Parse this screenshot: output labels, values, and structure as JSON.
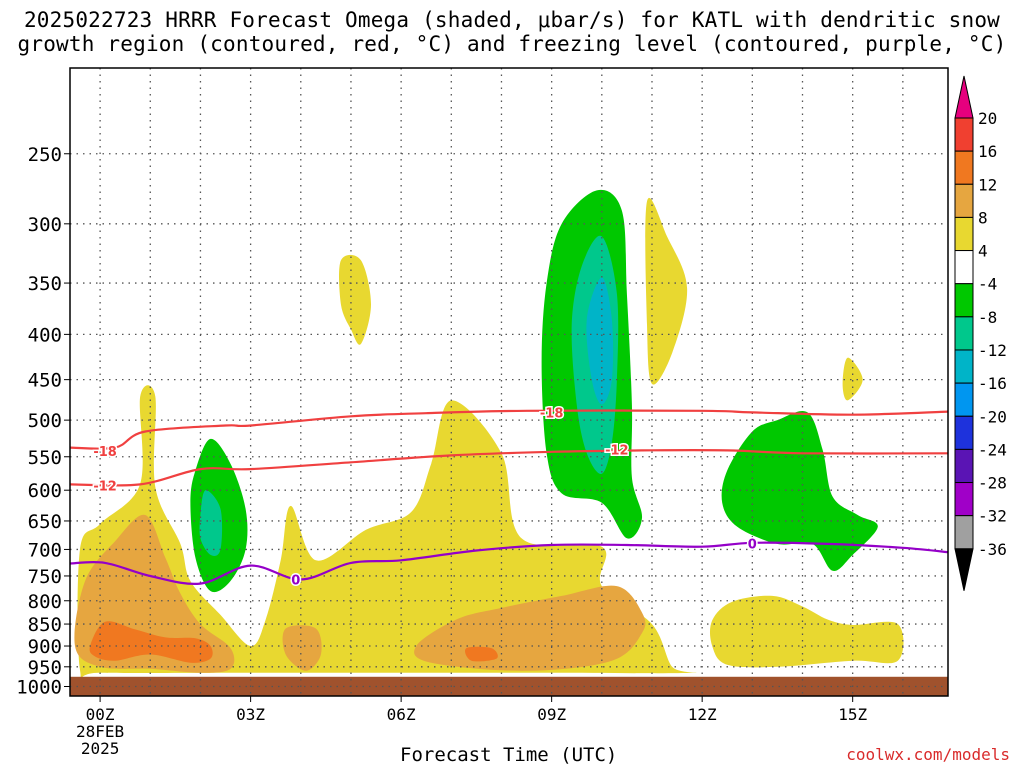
{
  "title_line1": "2025022723 HRRR Forecast Omega (shaded, μbar/s) for KATL with dendritic snow",
  "title_line2": "growth region (contoured, red, °C) and freezing level (contoured, purple, °C)",
  "credit": "coolwx.com/models",
  "chart_data": {
    "type": "contour",
    "title": "2025022723 HRRR Forecast Omega (shaded, μbar/s) for KATL with dendritic snow growth region (contoured, red, °C) and freezing level (contoured, purple, °C)",
    "xlabel": "Forecast Time (UTC)",
    "ylabel": "",
    "y_scale": "log-pressure",
    "y_reversed": true,
    "xlim_hours": [
      -0.6,
      16.9
    ],
    "ylim_hpa": [
      1025,
      200
    ],
    "y_ticks": [
      250,
      300,
      350,
      400,
      450,
      500,
      550,
      600,
      650,
      700,
      750,
      800,
      850,
      900,
      950,
      1000
    ],
    "x_ticks": [
      {
        "hour": 0,
        "lines": [
          "00Z",
          "28FEB",
          "2025"
        ]
      },
      {
        "hour": 3,
        "lines": [
          "03Z"
        ]
      },
      {
        "hour": 6,
        "lines": [
          "06Z"
        ]
      },
      {
        "hour": 9,
        "lines": [
          "09Z"
        ]
      },
      {
        "hour": 12,
        "lines": [
          "12Z"
        ]
      },
      {
        "hour": 15,
        "lines": [
          "15Z"
        ]
      }
    ],
    "grid": true,
    "below_ground": {
      "from_hpa": 975,
      "color": "#a0522d"
    },
    "colorbar": {
      "placement": "right",
      "labels": [
        "20",
        "16",
        "12",
        "8",
        "4",
        "-4",
        "-8",
        "-12",
        "-16",
        "-20",
        "-24",
        "-28",
        "-32",
        "-36"
      ],
      "bands": [
        {
          "range": "> 20",
          "color": "#e6007e"
        },
        {
          "range": "16 to 20",
          "color": "#f04030"
        },
        {
          "range": "12 to 16",
          "color": "#f07820"
        },
        {
          "range": "8 to 12",
          "color": "#e6a640"
        },
        {
          "range": "4 to 8",
          "color": "#e8d830"
        },
        {
          "range": "-4 to 4",
          "color": "#ffffff"
        },
        {
          "range": "-8 to -4",
          "color": "#00c800"
        },
        {
          "range": "-12 to -8",
          "color": "#00c88c"
        },
        {
          "range": "-16 to -12",
          "color": "#00b4c8"
        },
        {
          "range": "-20 to -16",
          "color": "#0096f0"
        },
        {
          "range": "-24 to -20",
          "color": "#1e32dc"
        },
        {
          "range": "-28 to -24",
          "color": "#5a14b4"
        },
        {
          "range": "-32 to -28",
          "color": "#a000c8"
        },
        {
          "range": "-36 to -32",
          "color": "#a0a0a0"
        },
        {
          "range": "< -36",
          "color": "#000000"
        }
      ]
    },
    "contours": [
      {
        "name": "-18",
        "color": "#f04040",
        "points": [
          [
            -0.6,
            537
          ],
          [
            0.3,
            537
          ],
          [
            0.9,
            515
          ],
          [
            2.5,
            507
          ],
          [
            3.0,
            507
          ],
          [
            5.0,
            495
          ],
          [
            6.5,
            491
          ],
          [
            8.5,
            488
          ],
          [
            12.0,
            488
          ],
          [
            13.0,
            490
          ],
          [
            15.0,
            493
          ],
          [
            16.9,
            489
          ]
        ],
        "labels": [
          {
            "hour": 0.1,
            "hpa": 542
          },
          {
            "hour": 9.0,
            "hpa": 490
          }
        ]
      },
      {
        "name": "-12",
        "color": "#f04040",
        "points": [
          [
            -0.6,
            591
          ],
          [
            0.8,
            591
          ],
          [
            2.0,
            568
          ],
          [
            3.0,
            568
          ],
          [
            5.0,
            558
          ],
          [
            7.0,
            548
          ],
          [
            9.0,
            543
          ],
          [
            10.8,
            541
          ],
          [
            12.5,
            541
          ],
          [
            14.0,
            545
          ],
          [
            16.9,
            545
          ]
        ],
        "labels": [
          {
            "hour": 0.1,
            "hpa": 593
          },
          {
            "hour": 10.3,
            "hpa": 540
          }
        ]
      },
      {
        "name": "0",
        "color": "#9400c8",
        "points": [
          [
            -0.6,
            726
          ],
          [
            0.1,
            725
          ],
          [
            1.0,
            750
          ],
          [
            2.0,
            765
          ],
          [
            3.0,
            730
          ],
          [
            4.0,
            757
          ],
          [
            5.0,
            725
          ],
          [
            6.0,
            720
          ],
          [
            7.5,
            702
          ],
          [
            9.0,
            692
          ],
          [
            10.5,
            692
          ],
          [
            12.0,
            695
          ],
          [
            13.0,
            688
          ],
          [
            14.5,
            690
          ],
          [
            16.0,
            697
          ],
          [
            16.9,
            705
          ]
        ],
        "labels": [
          {
            "hour": 3.9,
            "hpa": 757
          },
          {
            "hour": 13.0,
            "hpa": 689
          }
        ]
      }
    ],
    "regions": [
      {
        "value": "4 to 8",
        "points": [
          [
            -0.4,
            958
          ],
          [
            -0.4,
            700
          ],
          [
            0.0,
            655
          ],
          [
            0.8,
            590
          ],
          [
            0.8,
            470
          ],
          [
            1.1,
            470
          ],
          [
            1.1,
            595
          ],
          [
            1.6,
            690
          ],
          [
            1.8,
            760
          ],
          [
            2.4,
            830
          ],
          [
            3.0,
            900
          ],
          [
            3.3,
            840
          ],
          [
            3.6,
            720
          ],
          [
            3.8,
            625
          ],
          [
            4.3,
            720
          ],
          [
            5.3,
            665
          ],
          [
            6.2,
            635
          ],
          [
            6.6,
            560
          ],
          [
            7.0,
            475
          ],
          [
            8.0,
            545
          ],
          [
            8.4,
            680
          ],
          [
            10.0,
            695
          ],
          [
            10.0,
            770
          ],
          [
            11.0,
            850
          ],
          [
            11.4,
            950
          ],
          [
            11.8,
            965
          ],
          [
            9.0,
            965
          ],
          [
            6.0,
            965
          ],
          [
            3.0,
            965
          ],
          [
            0.0,
            965
          ]
        ]
      },
      {
        "value": "4 to 8",
        "points": [
          [
            4.8,
            330
          ],
          [
            5.2,
            330
          ],
          [
            5.4,
            370
          ],
          [
            5.2,
            410
          ],
          [
            5.0,
            395
          ],
          [
            4.8,
            370
          ]
        ]
      },
      {
        "value": "4 to 8",
        "points": [
          [
            10.9,
            283
          ],
          [
            11.3,
            310
          ],
          [
            11.7,
            355
          ],
          [
            11.4,
            420
          ],
          [
            11.0,
            455
          ],
          [
            10.9,
            390
          ]
        ]
      },
      {
        "value": "4 to 8",
        "points": [
          [
            14.9,
            425
          ],
          [
            15.2,
            450
          ],
          [
            14.9,
            475
          ],
          [
            14.8,
            455
          ]
        ]
      },
      {
        "value": "4 to 8",
        "points": [
          [
            12.2,
            842
          ],
          [
            12.6,
            802
          ],
          [
            13.4,
            790
          ],
          [
            14.0,
            812
          ],
          [
            14.5,
            840
          ],
          [
            15.0,
            852
          ],
          [
            15.9,
            850
          ],
          [
            15.9,
            935
          ],
          [
            15.0,
            935
          ],
          [
            13.5,
            950
          ],
          [
            12.5,
            945
          ],
          [
            12.2,
            900
          ]
        ]
      },
      {
        "value": "8 to 12",
        "points": [
          [
            -0.5,
            900
          ],
          [
            -0.3,
            760
          ],
          [
            0.3,
            685
          ],
          [
            0.9,
            640
          ],
          [
            1.3,
            715
          ],
          [
            1.6,
            785
          ],
          [
            2.0,
            850
          ],
          [
            2.6,
            905
          ],
          [
            2.6,
            955
          ],
          [
            2.0,
            965
          ],
          [
            1.0,
            955
          ],
          [
            0.0,
            950
          ]
        ]
      },
      {
        "value": "8 to 12",
        "points": [
          [
            3.7,
            860
          ],
          [
            4.3,
            860
          ],
          [
            4.4,
            920
          ],
          [
            4.1,
            960
          ],
          [
            3.7,
            920
          ]
        ]
      },
      {
        "value": "8 to 12",
        "points": [
          [
            6.3,
            900
          ],
          [
            7.1,
            840
          ],
          [
            8.0,
            815
          ],
          [
            9.2,
            790
          ],
          [
            10.3,
            770
          ],
          [
            10.8,
            825
          ],
          [
            10.8,
            870
          ],
          [
            10.2,
            935
          ],
          [
            8.5,
            960
          ],
          [
            6.6,
            940
          ]
        ]
      },
      {
        "value": "12 to 16",
        "points": [
          [
            -0.2,
            900
          ],
          [
            0.1,
            845
          ],
          [
            0.7,
            862
          ],
          [
            1.3,
            880
          ],
          [
            1.9,
            882
          ],
          [
            2.2,
            900
          ],
          [
            2.2,
            930
          ],
          [
            1.8,
            940
          ],
          [
            1.0,
            920
          ],
          [
            0.3,
            935
          ],
          [
            -0.1,
            925
          ]
        ]
      },
      {
        "value": "12 to 16",
        "points": [
          [
            7.3,
            905
          ],
          [
            7.8,
            905
          ],
          [
            7.9,
            930
          ],
          [
            7.4,
            935
          ]
        ]
      },
      {
        "value": "-8 to -4",
        "points": [
          [
            1.9,
            570
          ],
          [
            2.2,
            525
          ],
          [
            2.6,
            560
          ],
          [
            2.9,
            630
          ],
          [
            2.9,
            700
          ],
          [
            2.6,
            760
          ],
          [
            2.2,
            780
          ],
          [
            1.9,
            715
          ],
          [
            1.8,
            620
          ]
        ]
      },
      {
        "value": "-8 to -4",
        "points": [
          [
            8.9,
            350
          ],
          [
            9.2,
            300
          ],
          [
            9.9,
            275
          ],
          [
            10.4,
            290
          ],
          [
            10.5,
            360
          ],
          [
            10.6,
            480
          ],
          [
            10.6,
            580
          ],
          [
            10.8,
            645
          ],
          [
            10.5,
            680
          ],
          [
            10.0,
            620
          ],
          [
            9.2,
            605
          ],
          [
            8.9,
            545
          ],
          [
            8.8,
            430
          ]
        ]
      },
      {
        "value": "-8 to -4",
        "points": [
          [
            12.5,
            570
          ],
          [
            13.0,
            515
          ],
          [
            13.5,
            500
          ],
          [
            14.1,
            490
          ],
          [
            14.4,
            540
          ],
          [
            14.6,
            610
          ],
          [
            15.1,
            640
          ],
          [
            15.5,
            660
          ],
          [
            15.0,
            710
          ],
          [
            14.6,
            740
          ],
          [
            14.2,
            690
          ],
          [
            13.5,
            690
          ],
          [
            12.7,
            660
          ],
          [
            12.4,
            620
          ]
        ]
      },
      {
        "value": "-12 to -8",
        "points": [
          [
            2.0,
            640
          ],
          [
            2.1,
            600
          ],
          [
            2.4,
            630
          ],
          [
            2.4,
            700
          ],
          [
            2.2,
            710
          ],
          [
            2.0,
            680
          ]
        ]
      },
      {
        "value": "-12 to -8",
        "points": [
          [
            9.4,
            390
          ],
          [
            9.6,
            335
          ],
          [
            10.0,
            310
          ],
          [
            10.3,
            360
          ],
          [
            10.3,
            450
          ],
          [
            10.2,
            530
          ],
          [
            10.0,
            575
          ],
          [
            9.7,
            545
          ],
          [
            9.5,
            480
          ]
        ]
      },
      {
        "value": "-16 to -12",
        "points": [
          [
            9.7,
            385
          ],
          [
            10.0,
            345
          ],
          [
            10.2,
            385
          ],
          [
            10.2,
            450
          ],
          [
            10.0,
            480
          ],
          [
            9.8,
            450
          ]
        ]
      }
    ]
  }
}
